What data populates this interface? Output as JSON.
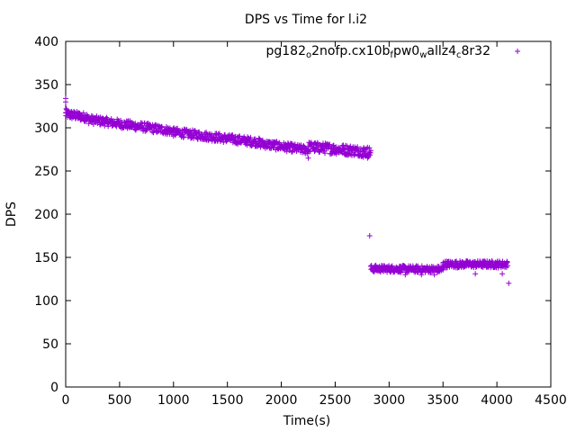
{
  "chart_data": {
    "type": "scatter",
    "title": "DPS vs Time for l.i2",
    "xlabel": "Time(s)",
    "ylabel": "DPS",
    "xlim": [
      0,
      4500
    ],
    "ylim": [
      0,
      400
    ],
    "xticks": [
      0,
      500,
      1000,
      1500,
      2000,
      2500,
      3000,
      3500,
      4000,
      4500
    ],
    "yticks": [
      0,
      50,
      100,
      150,
      200,
      250,
      300,
      350,
      400
    ],
    "grid": false,
    "legend_position": "top-right",
    "marker": "plus",
    "series": [
      {
        "name_parts": [
          {
            "text": "pg182",
            "sub": false
          },
          {
            "text": "o",
            "sub": true
          },
          {
            "text": "2nofp.cx10b",
            "sub": false
          },
          {
            "text": "f",
            "sub": true
          },
          {
            "text": "pw0",
            "sub": false
          },
          {
            "text": "w",
            "sub": true
          },
          {
            "text": "allz4",
            "sub": false
          },
          {
            "text": "c",
            "sub": true
          },
          {
            "text": "8r32",
            "sub": false
          }
        ],
        "color": "#9400d3",
        "segments": [
          {
            "x_start": 0,
            "x_end": 200,
            "y_start": 316,
            "y_end": 312,
            "y_spread": 5,
            "count": 70
          },
          {
            "x_start": 200,
            "x_end": 1000,
            "y_start": 310,
            "y_end": 296,
            "y_spread": 5,
            "count": 220
          },
          {
            "x_start": 1000,
            "x_end": 1800,
            "y_start": 295,
            "y_end": 283,
            "y_spread": 5,
            "count": 220
          },
          {
            "x_start": 1800,
            "x_end": 2250,
            "y_start": 282,
            "y_end": 274,
            "y_spread": 5,
            "count": 130
          },
          {
            "x_start": 2250,
            "x_end": 2830,
            "y_start": 278,
            "y_end": 272,
            "y_spread": 6,
            "count": 170
          },
          {
            "x_start": 2830,
            "x_end": 3500,
            "y_start": 137,
            "y_end": 136,
            "y_spread": 4,
            "count": 200
          },
          {
            "x_start": 3500,
            "x_end": 4100,
            "y_start": 142,
            "y_end": 142,
            "y_spread": 4,
            "count": 180
          }
        ],
        "points": [
          {
            "x": 0,
            "y": 334
          },
          {
            "x": 0,
            "y": 330
          },
          {
            "x": 5,
            "y": 322
          },
          {
            "x": 2250,
            "y": 265
          },
          {
            "x": 2800,
            "y": 265
          },
          {
            "x": 2760,
            "y": 266
          },
          {
            "x": 2820,
            "y": 175
          },
          {
            "x": 3150,
            "y": 130
          },
          {
            "x": 3300,
            "y": 130
          },
          {
            "x": 3420,
            "y": 130
          },
          {
            "x": 3800,
            "y": 131
          },
          {
            "x": 4050,
            "y": 131
          },
          {
            "x": 4110,
            "y": 120
          }
        ]
      }
    ]
  }
}
